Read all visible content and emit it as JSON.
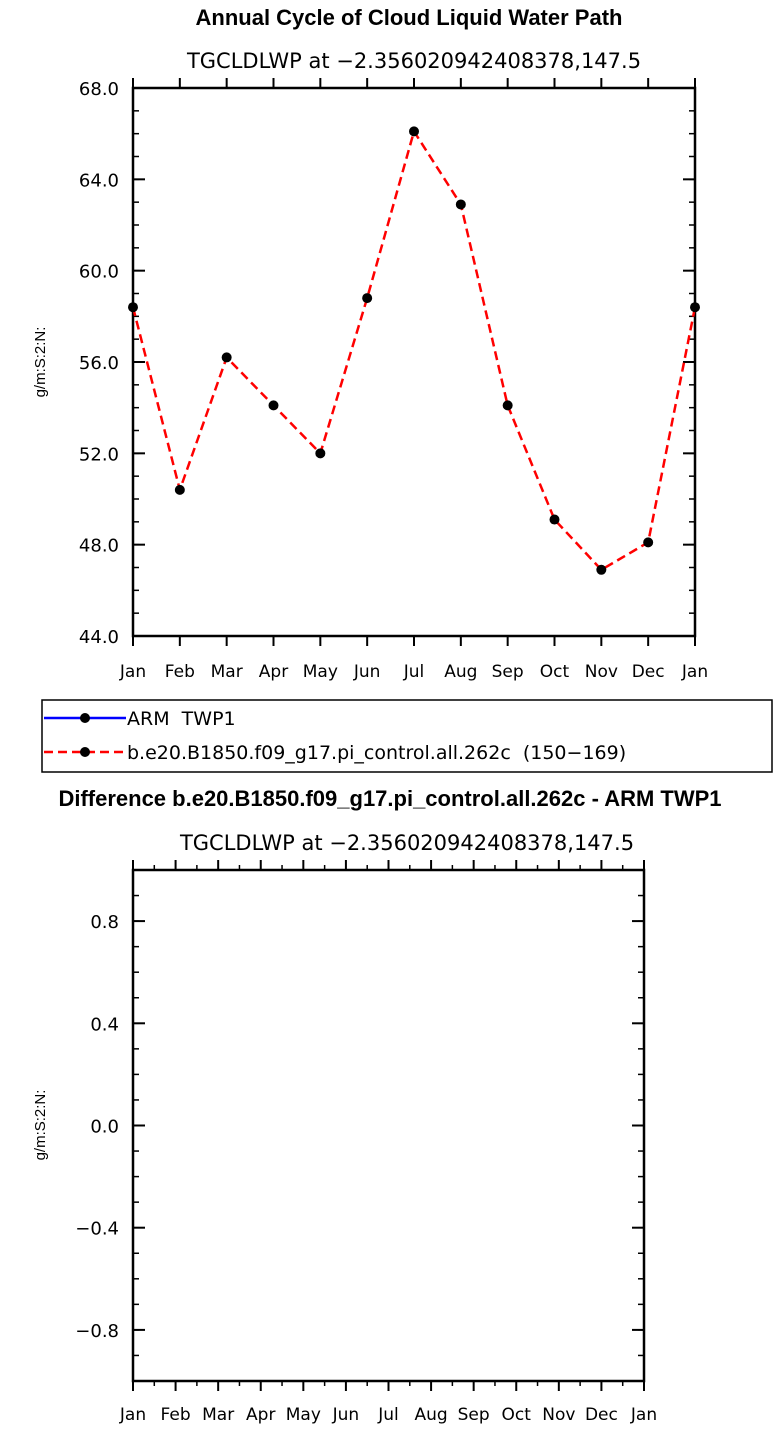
{
  "chart_data": [
    {
      "type": "line",
      "title": "Annual Cycle of Cloud Liquid Water Path",
      "subtitle": "TGCLDLWP at −2.356020942408378,147.5",
      "xlabel": "",
      "ylabel": "g/m:S:2:N:",
      "categories": [
        "Jan",
        "Feb",
        "Mar",
        "Apr",
        "May",
        "Jun",
        "Jul",
        "Aug",
        "Sep",
        "Oct",
        "Nov",
        "Dec",
        "Jan"
      ],
      "ylim": [
        44.0,
        68.0
      ],
      "yticks": [
        "44.0",
        "48.0",
        "52.0",
        "56.0",
        "60.0",
        "64.0",
        "68.0"
      ],
      "grid": false,
      "series": [
        {
          "name": "b.e20.B1850.f09_g17.pi_control.all.262c (150−169)",
          "color": "#ff0000",
          "style": "dashed",
          "marker": "filled-circle",
          "values": [
            58.4,
            50.4,
            56.2,
            54.1,
            52.0,
            58.8,
            66.1,
            62.9,
            54.1,
            49.1,
            46.9,
            48.1,
            58.4
          ]
        }
      ]
    },
    {
      "type": "line",
      "title": "Difference b.e20.B1850.f09_g17.pi_control.all.262c - ARM TWP1",
      "subtitle": "TGCLDLWP at −2.356020942408378,147.5",
      "xlabel": "",
      "ylabel": "g/m:S:2:N:",
      "categories": [
        "Jan",
        "Feb",
        "Mar",
        "Apr",
        "May",
        "Jun",
        "Jul",
        "Aug",
        "Sep",
        "Oct",
        "Nov",
        "Dec",
        "Jan"
      ],
      "ylim": [
        -1.0,
        1.0
      ],
      "yticks": [
        "−0.8",
        "−0.4",
        "0.0",
        "0.4",
        "0.8"
      ],
      "grid": false,
      "series": []
    }
  ],
  "legend": {
    "placement": "between-panels",
    "entries": [
      {
        "label": "ARM  TWP1",
        "color": "#0000ff",
        "style": "solid",
        "marker": "filled-circle"
      },
      {
        "label": "b.e20.B1850.f09_g17.pi_control.all.262c  (150−169)",
        "color": "#ff0000",
        "style": "dashed",
        "marker": "filled-circle"
      }
    ]
  }
}
